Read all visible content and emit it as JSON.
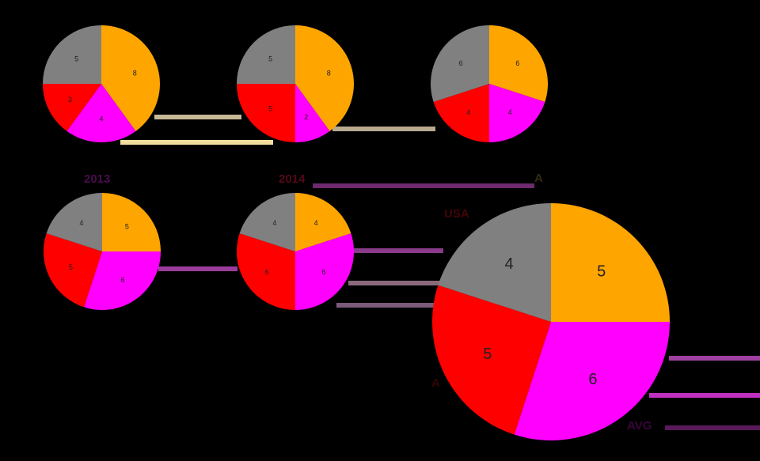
{
  "chart_data": [
    {
      "type": "pie",
      "title": "",
      "categories": [
        "orange",
        "magenta",
        "red",
        "gray"
      ],
      "values": [
        8,
        4,
        3,
        5
      ],
      "colors": [
        "#FFA500",
        "#FF00FF",
        "#FF0000",
        "#808080"
      ]
    },
    {
      "type": "pie",
      "title": "",
      "categories": [
        "orange",
        "magenta",
        "red",
        "gray"
      ],
      "values": [
        8,
        2,
        5,
        5
      ],
      "colors": [
        "#FFA500",
        "#FF00FF",
        "#FF0000",
        "#808080"
      ]
    },
    {
      "type": "pie",
      "title": "",
      "categories": [
        "orange",
        "magenta",
        "red",
        "gray"
      ],
      "values": [
        6,
        4,
        4,
        6
      ],
      "colors": [
        "#FFA500",
        "#FF00FF",
        "#FF0000",
        "#808080"
      ]
    },
    {
      "type": "pie",
      "title": "2013",
      "categories": [
        "orange",
        "magenta",
        "red",
        "gray"
      ],
      "values": [
        5,
        6,
        5,
        4
      ],
      "colors": [
        "#FFA500",
        "#FF00FF",
        "#FF0000",
        "#808080"
      ]
    },
    {
      "type": "pie",
      "title": "2014",
      "categories": [
        "orange",
        "magenta",
        "red",
        "gray"
      ],
      "values": [
        4,
        6,
        6,
        4
      ],
      "colors": [
        "#FFA500",
        "#FF00FF",
        "#FF0000",
        "#808080"
      ]
    },
    {
      "type": "pie",
      "title": "",
      "categories": [
        "orange",
        "magenta",
        "red",
        "gray"
      ],
      "values": [
        5,
        6,
        5,
        4
      ],
      "colors": [
        "#FFA500",
        "#FF00FF",
        "#FF0000",
        "#808080"
      ]
    }
  ],
  "labels": {
    "pie4_title": "2013",
    "pie5_title": "2014",
    "pie6_top_right": "A",
    "pie6_top_left": "USA",
    "pie6_left": "A",
    "pie6_bottom_right": "AVG"
  },
  "colors": {
    "background": "#000000",
    "orange": "#FFA500",
    "magenta": "#FF00FF",
    "red": "#FF0000",
    "gray": "#808080"
  }
}
